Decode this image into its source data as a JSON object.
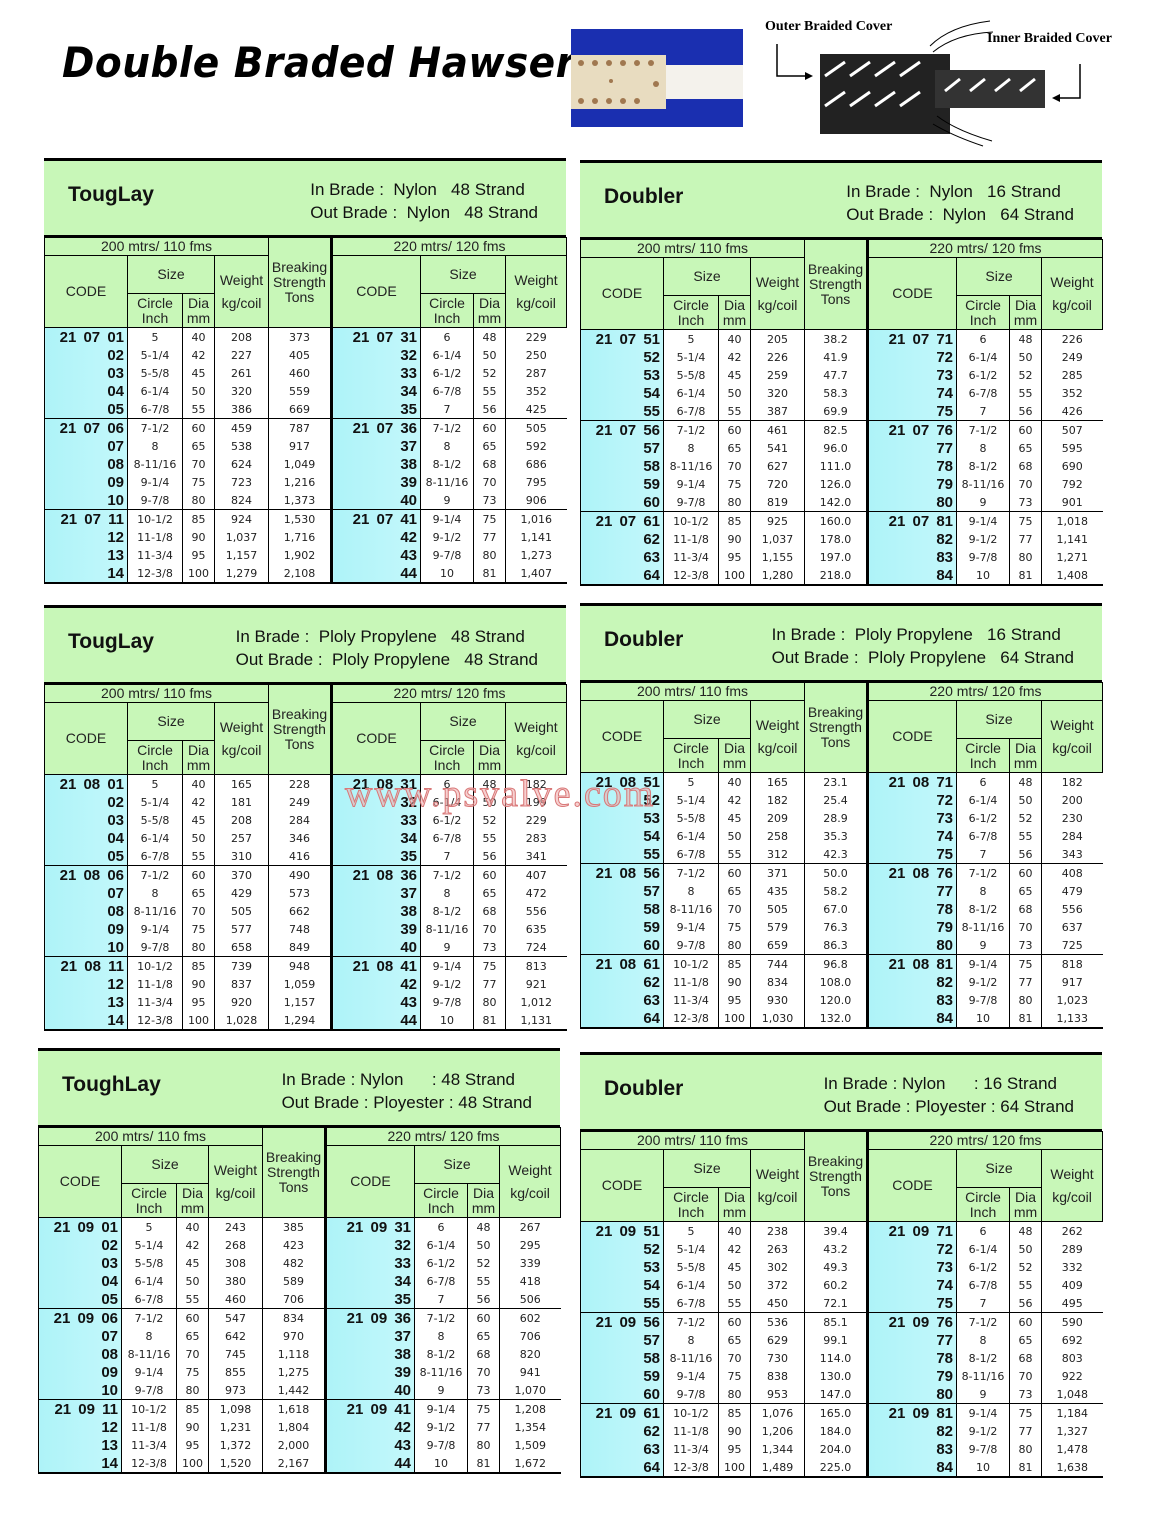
{
  "title": "Double Braded Hawser",
  "diagram": {
    "outer_label": "Outer Braided Cover",
    "inner_label": "Inner Braided Cover"
  },
  "watermark": "www.psvalve.com",
  "columns": {
    "group_left": "200 mtrs/ 110 fms",
    "group_right": "220 mtrs/ 120 fms",
    "code": "CODE",
    "size": "Size",
    "circle": "Circle Inch",
    "dia": "Dia mm",
    "weight": "Weight",
    "weight_unit": "kg/coil",
    "breaking": "Breaking Strength Tons"
  },
  "sizes": {
    "left_circle": [
      "5",
      "5-1/4",
      "5-5/8",
      "6-1/4",
      "6-7/8",
      "7-1/2",
      "8",
      "8-11/16",
      "9-1/4",
      "9-7/8",
      "10-1/2",
      "11-1/8",
      "11-3/4",
      "12-3/8"
    ],
    "left_dia": [
      "40",
      "42",
      "45",
      "50",
      "55",
      "60",
      "65",
      "70",
      "75",
      "80",
      "85",
      "90",
      "95",
      "100"
    ],
    "right_circle": [
      "6",
      "6-1/4",
      "6-1/2",
      "6-7/8",
      "7",
      "7-1/2",
      "8",
      "8-1/2",
      "8-11/16",
      "9",
      "9-1/4",
      "9-1/2",
      "9-7/8",
      "10"
    ],
    "right_dia": [
      "48",
      "50",
      "52",
      "55",
      "56",
      "60",
      "65",
      "68",
      "70",
      "73",
      "75",
      "77",
      "80",
      "81"
    ]
  },
  "panels": [
    {
      "title": "TougLay",
      "in_brade": "In Brade :  Nylon   48 Strand",
      "out_brade": "Out Brade :  Nylon   48 Strand",
      "left_codes": [
        "21 07 01",
        "02",
        "03",
        "04",
        "05",
        "21 07 06",
        "07",
        "08",
        "09",
        "10",
        "21 07 11",
        "12",
        "13",
        "14"
      ],
      "left_weight": [
        "208",
        "227",
        "261",
        "320",
        "386",
        "459",
        "538",
        "624",
        "723",
        "824",
        "924",
        "1,037",
        "1,157",
        "1,279"
      ],
      "breaking": [
        "373",
        "405",
        "460",
        "559",
        "669",
        "787",
        "917",
        "1,049",
        "1,216",
        "1,373",
        "1,530",
        "1,716",
        "1,902",
        "2,108"
      ],
      "right_codes": [
        "21 07 31",
        "32",
        "33",
        "34",
        "35",
        "21 07 36",
        "37",
        "38",
        "39",
        "40",
        "21 07 41",
        "42",
        "43",
        "44"
      ],
      "right_weight": [
        "229",
        "250",
        "287",
        "352",
        "425",
        "505",
        "592",
        "686",
        "795",
        "906",
        "1,016",
        "1,141",
        "1,273",
        "1,407"
      ]
    },
    {
      "title": "Doubler",
      "in_brade": "In Brade :  Nylon   16 Strand",
      "out_brade": "Out Brade :  Nylon   64 Strand",
      "left_codes": [
        "21 07 51",
        "52",
        "53",
        "54",
        "55",
        "21 07 56",
        "57",
        "58",
        "59",
        "60",
        "21 07 61",
        "62",
        "63",
        "64"
      ],
      "left_weight": [
        "205",
        "226",
        "259",
        "320",
        "387",
        "461",
        "541",
        "627",
        "720",
        "819",
        "925",
        "1,037",
        "1,155",
        "1,280"
      ],
      "breaking": [
        "38.2",
        "41.9",
        "47.7",
        "58.3",
        "69.9",
        "82.5",
        "96.0",
        "111.0",
        "126.0",
        "142.0",
        "160.0",
        "178.0",
        "197.0",
        "218.0"
      ],
      "right_codes": [
        "21 07 71",
        "72",
        "73",
        "74",
        "75",
        "21 07 76",
        "77",
        "78",
        "79",
        "80",
        "21 07 81",
        "82",
        "83",
        "84"
      ],
      "right_weight": [
        "226",
        "249",
        "285",
        "352",
        "426",
        "507",
        "595",
        "690",
        "792",
        "901",
        "1,018",
        "1,141",
        "1,271",
        "1,408"
      ]
    },
    {
      "title": "TougLay",
      "in_brade": "In Brade :  Ploly Propylene   48 Strand",
      "out_brade": "Out Brade :  Ploly Propylene   48 Strand",
      "left_codes": [
        "21 08 01",
        "02",
        "03",
        "04",
        "05",
        "21 08 06",
        "07",
        "08",
        "09",
        "10",
        "21 08 11",
        "12",
        "13",
        "14"
      ],
      "left_weight": [
        "165",
        "181",
        "208",
        "257",
        "310",
        "370",
        "429",
        "505",
        "577",
        "658",
        "739",
        "837",
        "920",
        "1,028"
      ],
      "breaking": [
        "228",
        "249",
        "284",
        "346",
        "416",
        "490",
        "573",
        "662",
        "748",
        "849",
        "948",
        "1,059",
        "1,157",
        "1,294"
      ],
      "right_codes": [
        "21 08 31",
        "32",
        "33",
        "34",
        "35",
        "21 08 36",
        "37",
        "38",
        "39",
        "40",
        "21 08 41",
        "42",
        "43",
        "44"
      ],
      "right_weight": [
        "182",
        "199",
        "229",
        "283",
        "341",
        "407",
        "472",
        "556",
        "635",
        "724",
        "813",
        "921",
        "1,012",
        "1,131"
      ]
    },
    {
      "title": "Doubler",
      "in_brade": "In Brade :  Ploly Propylene   16 Strand",
      "out_brade": "Out Brade :  Ploly Propylene   64 Strand",
      "left_codes": [
        "21 08 51",
        "52",
        "53",
        "54",
        "55",
        "21 08 56",
        "57",
        "58",
        "59",
        "60",
        "21 08 61",
        "62",
        "63",
        "64"
      ],
      "left_weight": [
        "165",
        "182",
        "209",
        "258",
        "312",
        "371",
        "435",
        "505",
        "579",
        "659",
        "744",
        "834",
        "930",
        "1,030"
      ],
      "breaking": [
        "23.1",
        "25.4",
        "28.9",
        "35.3",
        "42.3",
        "50.0",
        "58.2",
        "67.0",
        "76.3",
        "86.3",
        "96.8",
        "108.0",
        "120.0",
        "132.0"
      ],
      "right_codes": [
        "21 08 71",
        "72",
        "73",
        "74",
        "75",
        "21 08 76",
        "77",
        "78",
        "79",
        "80",
        "21 08 81",
        "82",
        "83",
        "84"
      ],
      "right_weight": [
        "182",
        "200",
        "230",
        "284",
        "343",
        "408",
        "479",
        "556",
        "637",
        "725",
        "818",
        "917",
        "1,023",
        "1,133"
      ]
    },
    {
      "title": "ToughLay",
      "in_brade": "In Brade : Nylon      : 48 Strand",
      "out_brade": "Out Brade : Ployester : 48 Strand",
      "left_codes": [
        "21 09 01",
        "02",
        "03",
        "04",
        "05",
        "21 09 06",
        "07",
        "08",
        "09",
        "10",
        "21 09 11",
        "12",
        "13",
        "14"
      ],
      "left_weight": [
        "243",
        "268",
        "308",
        "380",
        "460",
        "547",
        "642",
        "745",
        "855",
        "973",
        "1,098",
        "1,231",
        "1,372",
        "1,520"
      ],
      "breaking": [
        "385",
        "423",
        "482",
        "589",
        "706",
        "834",
        "970",
        "1,118",
        "1,275",
        "1,442",
        "1,618",
        "1,804",
        "2,000",
        "2,167"
      ],
      "right_codes": [
        "21 09 31",
        "32",
        "33",
        "34",
        "35",
        "21 09 36",
        "37",
        "38",
        "39",
        "40",
        "21 09 41",
        "42",
        "43",
        "44"
      ],
      "right_weight": [
        "267",
        "295",
        "339",
        "418",
        "506",
        "602",
        "706",
        "820",
        "941",
        "1,070",
        "1,208",
        "1,354",
        "1,509",
        "1,672"
      ]
    },
    {
      "title": "Doubler",
      "in_brade": "In Brade : Nylon      : 16 Strand",
      "out_brade": "Out Brade : Ployester : 64 Strand",
      "left_codes": [
        "21 09 51",
        "52",
        "53",
        "54",
        "55",
        "21 09 56",
        "57",
        "58",
        "59",
        "60",
        "21 09 61",
        "62",
        "63",
        "64"
      ],
      "left_weight": [
        "238",
        "263",
        "302",
        "372",
        "450",
        "536",
        "629",
        "730",
        "838",
        "953",
        "1,076",
        "1,206",
        "1,344",
        "1,489"
      ],
      "breaking": [
        "39.4",
        "43.2",
        "49.3",
        "60.2",
        "72.1",
        "85.1",
        "99.1",
        "114.0",
        "130.0",
        "147.0",
        "165.0",
        "184.0",
        "204.0",
        "225.0"
      ],
      "right_codes": [
        "21 09 71",
        "72",
        "73",
        "74",
        "75",
        "21 09 76",
        "77",
        "78",
        "79",
        "80",
        "21 09 81",
        "82",
        "83",
        "84"
      ],
      "right_weight": [
        "262",
        "289",
        "332",
        "409",
        "495",
        "590",
        "692",
        "803",
        "922",
        "1,048",
        "1,184",
        "1,327",
        "1,478",
        "1,638"
      ]
    }
  ]
}
